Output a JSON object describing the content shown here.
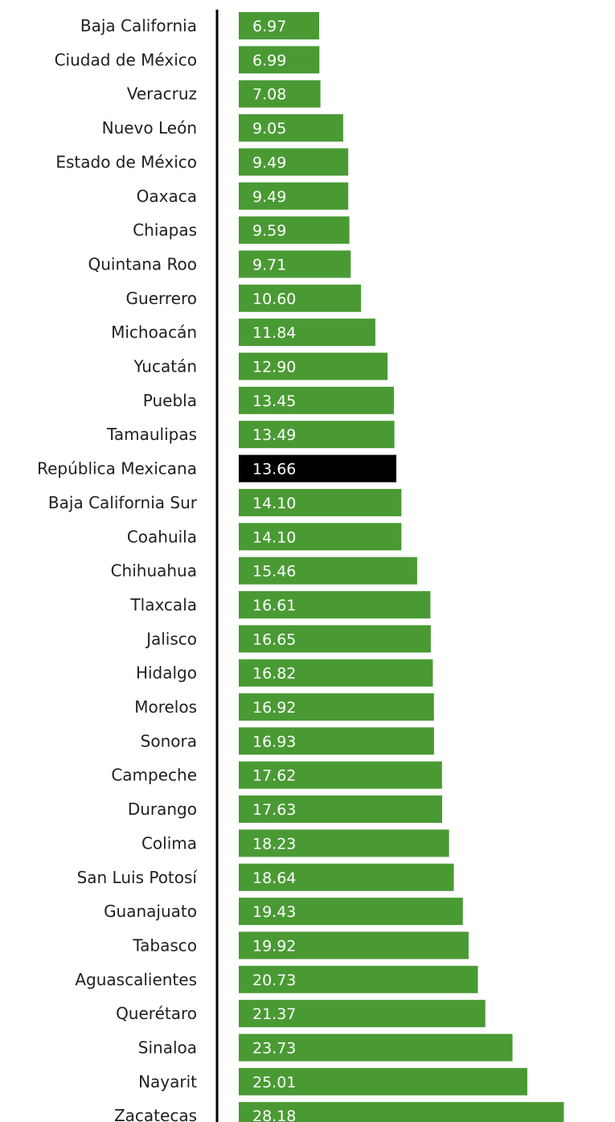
{
  "chart_data": {
    "type": "bar",
    "orientation": "horizontal",
    "categories": [
      "Baja California",
      "Ciudad de México",
      "Veracruz",
      "Nuevo León",
      "Estado de México",
      "Oaxaca",
      "Chiapas",
      "Quintana Roo",
      "Guerrero",
      "Michoacán",
      "Yucatán",
      "Puebla",
      "Tamaulipas",
      "República Mexicana",
      "Baja California Sur",
      "Coahuila",
      "Chihuahua",
      "Tlaxcala",
      "Jalisco",
      "Hidalgo",
      "Morelos",
      "Sonora",
      "Campeche",
      "Durango",
      "Colima",
      "San Luis Potosí",
      "Guanajuato",
      "Tabasco",
      "Aguascalientes",
      "Querétaro",
      "Sinaloa",
      "Nayarit",
      "Zacatecas"
    ],
    "values": [
      6.97,
      6.99,
      7.08,
      9.05,
      9.49,
      9.49,
      9.59,
      9.71,
      10.6,
      11.84,
      12.9,
      13.45,
      13.49,
      13.66,
      14.1,
      14.1,
      15.46,
      16.61,
      16.65,
      16.82,
      16.92,
      16.93,
      17.62,
      17.63,
      18.23,
      18.64,
      19.43,
      19.92,
      20.73,
      21.37,
      23.73,
      25.01,
      28.18
    ],
    "value_labels": [
      "6.97",
      "6.99",
      "7.08",
      "9.05",
      "9.49",
      "9.49",
      "9.59",
      "9.71",
      "10.60",
      "11.84",
      "12.90",
      "13.45",
      "13.49",
      "13.66",
      "14.10",
      "14.10",
      "15.46",
      "16.61",
      "16.65",
      "16.82",
      "16.92",
      "16.93",
      "17.62",
      "17.63",
      "18.23",
      "18.64",
      "19.43",
      "19.92",
      "20.73",
      "21.37",
      "23.73",
      "25.01",
      "28.18"
    ],
    "highlight": "República Mexicana",
    "colors": {
      "bar": "#4a9a34",
      "highlight": "#000000",
      "value_text": "#ffffff",
      "axis": "#000000"
    },
    "title": "",
    "xlabel": "",
    "ylabel": "",
    "xlim": [
      0,
      28.18
    ],
    "grid": false,
    "legend": "none"
  }
}
